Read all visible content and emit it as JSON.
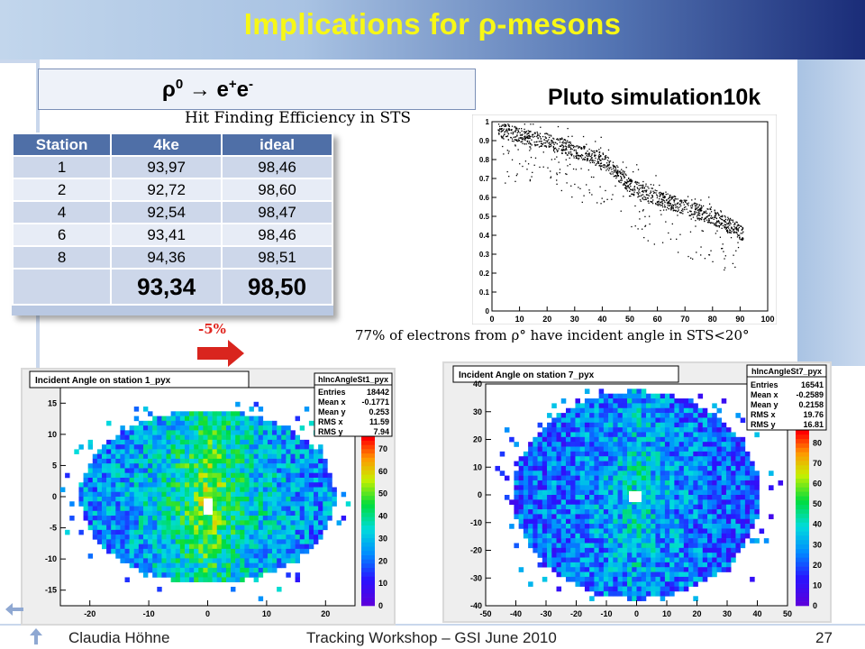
{
  "slide": {
    "title": "Implications for ρ-mesons",
    "reaction": {
      "rho": "ρ",
      "rho_sup": "0",
      "arrow": " → e",
      "e_plus_sup": "+",
      "e": "e",
      "e_minus_sup": "-"
    },
    "pluto_label": "Pluto simulation10k",
    "hit_finding_label": "Hit Finding Efficiency in STS",
    "efficiency_drop": "-5%",
    "note": "77% of electrons from ρ° have incident angle in STS<20°",
    "footer": {
      "author": "Claudia Höhne",
      "event": "Tracking Workshop – GSI June 2010",
      "page": "27"
    }
  },
  "table": {
    "headers": [
      "Station",
      "4ke",
      "ideal"
    ],
    "rows": [
      [
        "1",
        "93,97",
        "98,46"
      ],
      [
        "2",
        "92,72",
        "98,60"
      ],
      [
        "4",
        "92,54",
        "98,47"
      ],
      [
        "6",
        "93,41",
        "98,46"
      ],
      [
        "8",
        "94,36",
        "98,51"
      ]
    ],
    "total": [
      "",
      "93,34",
      "98,50"
    ]
  },
  "colors": {
    "title": "#f7f716",
    "arrow": "#d9251e",
    "table_header": "#4f6fa7"
  },
  "chart_data": [
    {
      "type": "scatter",
      "xlim": [
        0,
        100
      ],
      "ylim": [
        0,
        1
      ],
      "xticks": [
        "0",
        "10",
        "20",
        "30",
        "40",
        "50",
        "60",
        "70",
        "80",
        "90",
        "100"
      ],
      "yticks": [
        "0",
        "0.1",
        "0.2",
        "0.3",
        "0.4",
        "0.5",
        "0.6",
        "0.7",
        "0.8",
        "0.9",
        "1"
      ],
      "grid": false,
      "trend": [
        [
          2,
          0.96
        ],
        [
          10,
          0.93
        ],
        [
          20,
          0.9
        ],
        [
          30,
          0.85
        ],
        [
          40,
          0.8
        ],
        [
          45,
          0.74
        ],
        [
          50,
          0.66
        ],
        [
          60,
          0.6
        ],
        [
          70,
          0.55
        ],
        [
          80,
          0.5
        ],
        [
          88,
          0.44
        ],
        [
          92,
          0.4
        ]
      ]
    },
    {
      "type": "heatmap",
      "title": "Incident Angle on station 1_pyx",
      "stats": {
        "name": "hIncAngleSt1_pyx",
        "entries_label": "Entries",
        "entries": "18442",
        "mean_x_label": "Mean x",
        "mean_x": "-0.1771",
        "mean_y_label": "Mean y",
        "mean_y": "0.253",
        "rms_x_label": "RMS x",
        "rms_x": "11.59",
        "rms_y_label": "RMS y",
        "rms_y": "7.94"
      },
      "xlim": [
        -25,
        25
      ],
      "ylim": [
        -17.5,
        17.5
      ],
      "xticks": [
        "-20",
        "-10",
        "0",
        "10",
        "20"
      ],
      "yticks": [
        "-15",
        "-10",
        "-5",
        "0",
        "5",
        "10",
        "15"
      ],
      "zticks": [
        "0",
        "10",
        "20",
        "30",
        "40",
        "50",
        "60",
        "70"
      ]
    },
    {
      "type": "heatmap",
      "title": "Incident Angle on station 7_pyx",
      "stats": {
        "name": "hIncAngleSt7_pyx",
        "entries_label": "Entries",
        "entries": "16541",
        "mean_x_label": "Mean x",
        "mean_x": "-0.2589",
        "mean_y_label": "Mean y",
        "mean_y": "0.2158",
        "rms_x_label": "RMS x",
        "rms_x": "19.76",
        "rms_y_label": "RMS y",
        "rms_y": "16.81"
      },
      "xlim": [
        -50,
        50
      ],
      "ylim": [
        -40,
        40
      ],
      "xticks": [
        "-50",
        "-40",
        "-30",
        "-20",
        "-10",
        "0",
        "10",
        "20",
        "30",
        "40",
        "50"
      ],
      "yticks": [
        "-40",
        "-30",
        "-20",
        "-10",
        "0",
        "10",
        "20",
        "30",
        "40"
      ],
      "zticks": [
        "0",
        "10",
        "20",
        "30",
        "40",
        "50",
        "60",
        "70",
        "80"
      ]
    }
  ]
}
